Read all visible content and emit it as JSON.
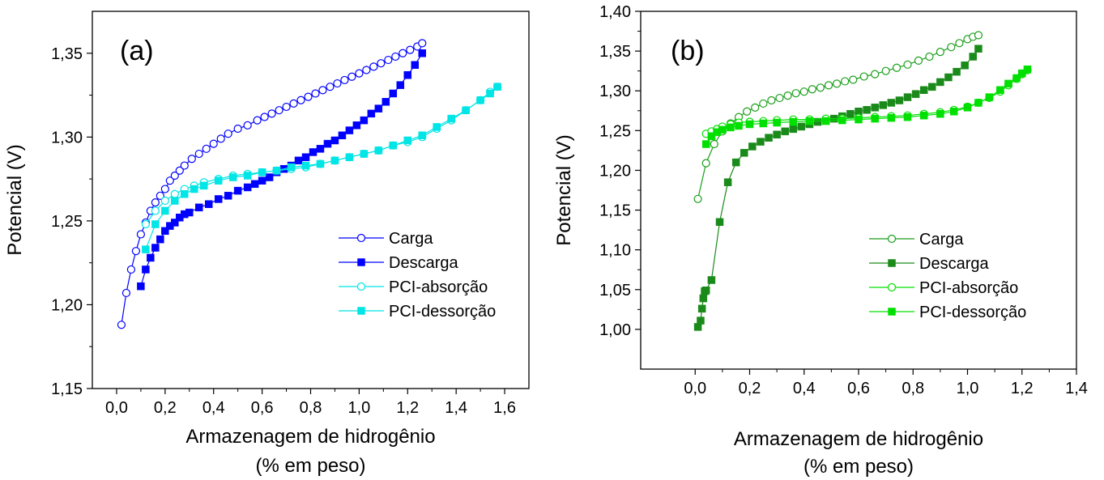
{
  "chart_data": [
    {
      "type": "line",
      "panel_label": "(a)",
      "xlabel_line1": "Armazenagem de hidrogênio",
      "xlabel_line2": "(% em peso)",
      "ylabel": "Potencial (V)",
      "xlim": [
        -0.1,
        1.7
      ],
      "ylim": [
        1.15,
        1.375
      ],
      "xticks": [
        0.0,
        0.2,
        0.4,
        0.6,
        0.8,
        1.0,
        1.2,
        1.4,
        1.6
      ],
      "xtick_labels": [
        "0,0",
        "0,2",
        "0,4",
        "0,6",
        "0,8",
        "1,0",
        "1,2",
        "1,4",
        "1,6"
      ],
      "yticks": [
        1.15,
        1.2,
        1.25,
        1.3,
        1.35
      ],
      "ytick_labels": [
        "1,15",
        "1,20",
        "1,25",
        "1,30",
        "1,35"
      ],
      "legend_position": "bottom-right",
      "series": [
        {
          "name": "Carga",
          "color": "#0000ff",
          "marker": "circle-open",
          "x": [
            0.02,
            0.04,
            0.06,
            0.08,
            0.1,
            0.12,
            0.14,
            0.16,
            0.18,
            0.2,
            0.22,
            0.24,
            0.26,
            0.28,
            0.31,
            0.34,
            0.37,
            0.4,
            0.43,
            0.46,
            0.5,
            0.54,
            0.58,
            0.61,
            0.64,
            0.67,
            0.7,
            0.73,
            0.76,
            0.79,
            0.82,
            0.85,
            0.88,
            0.91,
            0.94,
            0.97,
            1.0,
            1.03,
            1.06,
            1.09,
            1.12,
            1.15,
            1.18,
            1.21,
            1.24,
            1.26
          ],
          "y": [
            1.188,
            1.207,
            1.221,
            1.232,
            1.242,
            1.249,
            1.256,
            1.261,
            1.265,
            1.269,
            1.274,
            1.277,
            1.28,
            1.283,
            1.287,
            1.29,
            1.293,
            1.296,
            1.299,
            1.302,
            1.305,
            1.307,
            1.31,
            1.312,
            1.314,
            1.316,
            1.318,
            1.32,
            1.322,
            1.324,
            1.326,
            1.328,
            1.33,
            1.332,
            1.334,
            1.336,
            1.338,
            1.34,
            1.342,
            1.344,
            1.346,
            1.348,
            1.35,
            1.352,
            1.354,
            1.356
          ]
        },
        {
          "name": "Descarga",
          "color": "#0000ff",
          "marker": "square-filled",
          "x": [
            0.1,
            0.12,
            0.14,
            0.16,
            0.18,
            0.2,
            0.22,
            0.24,
            0.26,
            0.28,
            0.3,
            0.34,
            0.38,
            0.42,
            0.46,
            0.5,
            0.54,
            0.57,
            0.6,
            0.63,
            0.66,
            0.69,
            0.72,
            0.75,
            0.78,
            0.81,
            0.84,
            0.87,
            0.9,
            0.93,
            0.96,
            0.99,
            1.02,
            1.05,
            1.08,
            1.11,
            1.14,
            1.17,
            1.2,
            1.23,
            1.26
          ],
          "y": [
            1.211,
            1.221,
            1.228,
            1.234,
            1.239,
            1.244,
            1.247,
            1.249,
            1.252,
            1.254,
            1.255,
            1.258,
            1.26,
            1.263,
            1.265,
            1.268,
            1.27,
            1.272,
            1.274,
            1.276,
            1.279,
            1.281,
            1.283,
            1.286,
            1.288,
            1.291,
            1.293,
            1.296,
            1.298,
            1.301,
            1.304,
            1.307,
            1.31,
            1.314,
            1.317,
            1.321,
            1.326,
            1.331,
            1.337,
            1.343,
            1.35
          ]
        },
        {
          "name": "PCI-absorção",
          "color": "#00e5e5",
          "marker": "circle-open",
          "x": [
            0.12,
            0.16,
            0.2,
            0.24,
            0.28,
            0.32,
            0.36,
            0.42,
            0.48,
            0.54,
            0.6,
            0.66,
            0.72,
            0.78,
            0.84,
            0.9,
            0.96,
            1.02,
            1.08,
            1.14,
            1.2,
            1.26,
            1.32,
            1.38,
            1.44,
            1.5,
            1.54,
            1.57
          ],
          "y": [
            1.248,
            1.256,
            1.262,
            1.266,
            1.269,
            1.271,
            1.273,
            1.275,
            1.277,
            1.278,
            1.279,
            1.28,
            1.281,
            1.282,
            1.284,
            1.286,
            1.288,
            1.29,
            1.292,
            1.295,
            1.297,
            1.3,
            1.305,
            1.31,
            1.316,
            1.322,
            1.327,
            1.33
          ]
        },
        {
          "name": "PCI-dessorção",
          "color": "#00e5e5",
          "marker": "square-filled",
          "x": [
            0.12,
            0.16,
            0.2,
            0.24,
            0.28,
            0.32,
            0.36,
            0.42,
            0.48,
            0.54,
            0.6,
            0.66,
            0.72,
            0.78,
            0.84,
            0.9,
            0.96,
            1.02,
            1.08,
            1.14,
            1.2,
            1.26,
            1.32,
            1.38,
            1.44,
            1.5,
            1.54,
            1.57
          ],
          "y": [
            1.233,
            1.248,
            1.256,
            1.262,
            1.266,
            1.269,
            1.271,
            1.274,
            1.276,
            1.277,
            1.279,
            1.28,
            1.282,
            1.283,
            1.284,
            1.286,
            1.288,
            1.29,
            1.292,
            1.295,
            1.298,
            1.301,
            1.306,
            1.311,
            1.316,
            1.322,
            1.326,
            1.33
          ]
        }
      ]
    },
    {
      "type": "line",
      "panel_label": "(b)",
      "xlabel_line1": "Armazenagem de hidrogênio",
      "xlabel_line2": "(% em peso)",
      "ylabel": "Potencial (V)",
      "xlim": [
        -0.2,
        1.4
      ],
      "ylim": [
        0.95,
        1.4
      ],
      "xticks": [
        0.0,
        0.2,
        0.4,
        0.6,
        0.8,
        1.0,
        1.2,
        1.4
      ],
      "xtick_labels": [
        "0,0",
        "0,2",
        "0,4",
        "0,6",
        "0,8",
        "1,0",
        "1,2",
        "1,4"
      ],
      "yticks": [
        1.0,
        1.05,
        1.1,
        1.15,
        1.2,
        1.25,
        1.3,
        1.35,
        1.4
      ],
      "ytick_labels": [
        "1,00",
        "1,05",
        "1,10",
        "1,15",
        "1,20",
        "1,25",
        "1,30",
        "1,35",
        "1,40"
      ],
      "legend_position": "bottom-right",
      "series": [
        {
          "name": "Carga",
          "color": "#1a9e1a",
          "marker": "circle-open",
          "x": [
            0.01,
            0.04,
            0.07,
            0.1,
            0.13,
            0.16,
            0.19,
            0.22,
            0.25,
            0.28,
            0.31,
            0.34,
            0.37,
            0.4,
            0.43,
            0.46,
            0.49,
            0.52,
            0.55,
            0.58,
            0.62,
            0.66,
            0.7,
            0.74,
            0.78,
            0.82,
            0.86,
            0.9,
            0.94,
            0.97,
            1.0,
            1.02,
            1.04
          ],
          "y": [
            1.164,
            1.209,
            1.233,
            1.249,
            1.259,
            1.267,
            1.274,
            1.279,
            1.284,
            1.288,
            1.291,
            1.294,
            1.297,
            1.299,
            1.302,
            1.304,
            1.307,
            1.309,
            1.312,
            1.314,
            1.318,
            1.321,
            1.325,
            1.329,
            1.333,
            1.338,
            1.343,
            1.349,
            1.355,
            1.36,
            1.365,
            1.368,
            1.37
          ]
        },
        {
          "name": "Descarga",
          "color": "#1a8a1a",
          "marker": "square-filled",
          "x": [
            0.01,
            0.02,
            0.025,
            0.03,
            0.035,
            0.04,
            0.06,
            0.09,
            0.12,
            0.15,
            0.18,
            0.21,
            0.24,
            0.27,
            0.3,
            0.33,
            0.36,
            0.39,
            0.42,
            0.45,
            0.48,
            0.51,
            0.54,
            0.57,
            0.6,
            0.63,
            0.66,
            0.69,
            0.72,
            0.75,
            0.78,
            0.81,
            0.84,
            0.87,
            0.9,
            0.93,
            0.96,
            0.99,
            1.02,
            1.04
          ],
          "y": [
            1.003,
            1.011,
            1.026,
            1.039,
            1.048,
            1.049,
            1.062,
            1.135,
            1.185,
            1.21,
            1.222,
            1.23,
            1.236,
            1.241,
            1.245,
            1.249,
            1.252,
            1.255,
            1.258,
            1.261,
            1.263,
            1.265,
            1.268,
            1.271,
            1.274,
            1.276,
            1.279,
            1.282,
            1.285,
            1.288,
            1.292,
            1.296,
            1.301,
            1.305,
            1.311,
            1.317,
            1.324,
            1.332,
            1.343,
            1.353
          ]
        },
        {
          "name": "PCI-absorção",
          "color": "#00e000",
          "marker": "circle-open",
          "x": [
            0.04,
            0.06,
            0.08,
            0.1,
            0.13,
            0.16,
            0.2,
            0.25,
            0.3,
            0.36,
            0.42,
            0.48,
            0.54,
            0.6,
            0.66,
            0.72,
            0.78,
            0.84,
            0.9,
            0.95,
            1.0,
            1.04,
            1.08,
            1.12,
            1.15,
            1.18,
            1.2,
            1.22
          ],
          "y": [
            1.246,
            1.249,
            1.252,
            1.255,
            1.258,
            1.26,
            1.261,
            1.262,
            1.263,
            1.264,
            1.264,
            1.265,
            1.265,
            1.266,
            1.267,
            1.268,
            1.269,
            1.271,
            1.273,
            1.276,
            1.28,
            1.285,
            1.291,
            1.299,
            1.307,
            1.315,
            1.321,
            1.326
          ]
        },
        {
          "name": "PCI-dessorção",
          "color": "#00e000",
          "marker": "square-filled",
          "x": [
            0.04,
            0.06,
            0.08,
            0.1,
            0.13,
            0.16,
            0.2,
            0.25,
            0.3,
            0.36,
            0.42,
            0.48,
            0.54,
            0.6,
            0.66,
            0.72,
            0.78,
            0.84,
            0.9,
            0.95,
            1.0,
            1.04,
            1.08,
            1.12,
            1.15,
            1.18,
            1.2,
            1.22
          ],
          "y": [
            1.233,
            1.243,
            1.248,
            1.251,
            1.254,
            1.256,
            1.258,
            1.259,
            1.26,
            1.261,
            1.262,
            1.262,
            1.263,
            1.264,
            1.265,
            1.266,
            1.267,
            1.269,
            1.271,
            1.274,
            1.279,
            1.285,
            1.292,
            1.301,
            1.309,
            1.316,
            1.322,
            1.327
          ]
        }
      ]
    }
  ]
}
